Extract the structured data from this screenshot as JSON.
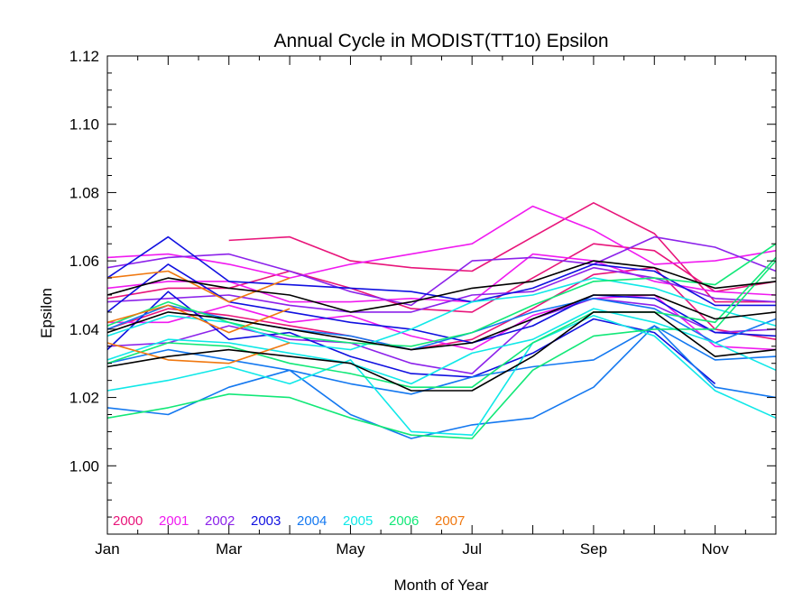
{
  "chart_data": {
    "type": "line",
    "title": "Annual Cycle in MODIST(TT10) Epsilon",
    "xlabel": "Month of Year",
    "ylabel": "Epsilon",
    "xlim": [
      1,
      12
    ],
    "ylim": [
      0.98,
      1.12
    ],
    "x_ticks": [
      {
        "value": 1,
        "label": "Jan"
      },
      {
        "value": 3,
        "label": "Mar"
      },
      {
        "value": 5,
        "label": "May"
      },
      {
        "value": 7,
        "label": "Jul"
      },
      {
        "value": 9,
        "label": "Sep"
      },
      {
        "value": 11,
        "label": "Nov"
      }
    ],
    "y_ticks": [
      {
        "value": 1.0,
        "label": "1.00"
      },
      {
        "value": 1.02,
        "label": "1.02"
      },
      {
        "value": 1.04,
        "label": "1.04"
      },
      {
        "value": 1.06,
        "label": "1.06"
      },
      {
        "value": 1.08,
        "label": "1.08"
      },
      {
        "value": 1.1,
        "label": "1.10"
      },
      {
        "value": 1.12,
        "label": "1.12"
      }
    ],
    "legend_placement": "bottom-left",
    "legend": [
      {
        "label": "2000",
        "color": "#e8157a"
      },
      {
        "label": "2001",
        "color": "#f01af0"
      },
      {
        "label": "2002",
        "color": "#8c22ea"
      },
      {
        "label": "2003",
        "color": "#1010e0"
      },
      {
        "label": "2004",
        "color": "#1478f0"
      },
      {
        "label": "2005",
        "color": "#10e8e8"
      },
      {
        "label": "2006",
        "color": "#12e878"
      },
      {
        "label": "2007",
        "color": "#f07810"
      }
    ],
    "series": [
      {
        "color": "#e8157a",
        "x": [
          3,
          4,
          5,
          6,
          7,
          8,
          9,
          10,
          11,
          12
        ],
        "values": [
          1.066,
          1.067,
          1.06,
          1.058,
          1.057,
          1.067,
          1.077,
          1.068,
          1.048,
          1.048
        ]
      },
      {
        "color": "#e8157a",
        "x": [
          1,
          2,
          3,
          4,
          5,
          6,
          7,
          8,
          9,
          10,
          11,
          12
        ],
        "values": [
          1.049,
          1.052,
          1.052,
          1.057,
          1.052,
          1.046,
          1.045,
          1.055,
          1.065,
          1.063,
          1.051,
          1.054
        ]
      },
      {
        "color": "#e8157a",
        "x": [
          1,
          2,
          3,
          4,
          5,
          6,
          7,
          8,
          9,
          10,
          11,
          12
        ],
        "values": [
          1.04,
          1.046,
          1.044,
          1.041,
          1.038,
          1.034,
          1.037,
          1.046,
          1.056,
          1.058,
          1.04,
          1.037
        ]
      },
      {
        "color": "#f01af0",
        "x": [
          1,
          2,
          3,
          4,
          5,
          6,
          7,
          8,
          9,
          10,
          11,
          12
        ],
        "values": [
          1.061,
          1.062,
          1.059,
          1.055,
          1.059,
          1.062,
          1.065,
          1.076,
          1.069,
          1.059,
          1.06,
          1.063
        ]
      },
      {
        "color": "#f01af0",
        "x": [
          1,
          2,
          3,
          4,
          5,
          6,
          7,
          8,
          9,
          10,
          11,
          12
        ],
        "values": [
          1.052,
          1.054,
          1.054,
          1.048,
          1.048,
          1.049,
          1.048,
          1.062,
          1.06,
          1.054,
          1.051,
          1.05
        ]
      },
      {
        "color": "#f01af0",
        "x": [
          1,
          2,
          3,
          4,
          5,
          6,
          7,
          8,
          9,
          10,
          11,
          12
        ],
        "values": [
          1.042,
          1.042,
          1.047,
          1.042,
          1.044,
          1.038,
          1.034,
          1.044,
          1.049,
          1.05,
          1.035,
          1.034
        ]
      },
      {
        "color": "#8c22ea",
        "x": [
          1,
          2,
          3,
          4,
          5,
          6,
          7,
          8,
          9,
          10,
          11,
          12
        ],
        "values": [
          1.058,
          1.061,
          1.062,
          1.057,
          1.051,
          1.047,
          1.06,
          1.061,
          1.059,
          1.067,
          1.064,
          1.057
        ]
      },
      {
        "color": "#8c22ea",
        "x": [
          1,
          2,
          3,
          4,
          5,
          6,
          7,
          8,
          9,
          10,
          11,
          12
        ],
        "values": [
          1.048,
          1.049,
          1.05,
          1.047,
          1.045,
          1.045,
          1.05,
          1.051,
          1.058,
          1.055,
          1.049,
          1.048
        ]
      },
      {
        "color": "#8c22ea",
        "x": [
          1,
          2,
          3,
          4,
          5,
          6,
          7,
          8,
          9,
          10,
          11,
          12
        ],
        "values": [
          1.035,
          1.036,
          1.041,
          1.037,
          1.036,
          1.03,
          1.027,
          1.043,
          1.049,
          1.047,
          1.039,
          1.04
        ]
      },
      {
        "color": "#1010e0",
        "x": [
          1,
          2,
          3,
          4,
          5,
          6,
          7,
          8,
          9,
          10,
          11,
          12
        ],
        "values": [
          1.055,
          1.067,
          1.054,
          1.053,
          1.052,
          1.051,
          1.048,
          1.052,
          1.059,
          1.057,
          1.047,
          1.047
        ]
      },
      {
        "color": "#1010e0",
        "x": [
          1,
          2,
          3,
          4,
          5,
          6,
          7,
          8,
          9,
          10,
          11,
          12
        ],
        "values": [
          1.045,
          1.059,
          1.048,
          1.045,
          1.042,
          1.04,
          1.036,
          1.041,
          1.05,
          1.049,
          1.039,
          1.038
        ]
      },
      {
        "color": "#1010e0",
        "x": [
          1,
          2,
          3,
          4,
          5,
          6,
          7,
          8,
          9,
          10,
          11
        ],
        "values": [
          1.034,
          1.051,
          1.037,
          1.039,
          1.032,
          1.027,
          1.026,
          1.033,
          1.043,
          1.039,
          1.024
        ]
      },
      {
        "color": "#1478f0",
        "x": [
          1,
          2,
          3,
          4,
          5,
          6,
          7,
          8,
          9,
          10,
          11,
          12
        ],
        "values": [
          1.04,
          1.047,
          1.043,
          1.04,
          1.038,
          1.034,
          1.039,
          1.045,
          1.049,
          1.046,
          1.036,
          1.043
        ]
      },
      {
        "color": "#1478f0",
        "x": [
          1,
          2,
          3,
          4,
          5,
          6,
          7,
          8,
          9,
          10,
          11,
          12
        ],
        "values": [
          1.03,
          1.034,
          1.031,
          1.028,
          1.024,
          1.021,
          1.026,
          1.029,
          1.031,
          1.041,
          1.031,
          1.032
        ]
      },
      {
        "color": "#1478f0",
        "x": [
          1,
          2,
          3,
          4,
          5,
          6,
          7,
          8,
          9,
          10,
          11,
          12
        ],
        "values": [
          1.017,
          1.015,
          1.023,
          1.028,
          1.015,
          1.008,
          1.012,
          1.014,
          1.023,
          1.041,
          1.023,
          1.02
        ]
      },
      {
        "color": "#10e8e8",
        "x": [
          1,
          2,
          3,
          4,
          5,
          6,
          7,
          8,
          9,
          10,
          11,
          12
        ],
        "values": [
          1.038,
          1.044,
          1.042,
          1.036,
          1.034,
          1.04,
          1.048,
          1.05,
          1.055,
          1.052,
          1.046,
          1.041
        ]
      },
      {
        "color": "#10e8e8",
        "x": [
          1,
          2,
          3,
          4,
          5,
          6,
          7,
          8,
          9,
          10,
          11,
          12
        ],
        "values": [
          1.031,
          1.037,
          1.036,
          1.033,
          1.03,
          1.024,
          1.033,
          1.037,
          1.046,
          1.042,
          1.036,
          1.028
        ]
      },
      {
        "color": "#10e8e8",
        "x": [
          1,
          2,
          3,
          4,
          5,
          6,
          7,
          8,
          9,
          10,
          11,
          12
        ],
        "values": [
          1.022,
          1.025,
          1.029,
          1.024,
          1.031,
          1.01,
          1.009,
          1.036,
          1.044,
          1.038,
          1.022,
          1.014
        ]
      },
      {
        "color": "#12e878",
        "x": [
          1,
          2,
          3,
          4,
          5,
          6,
          7,
          8,
          9,
          10,
          11,
          12
        ],
        "values": [
          1.041,
          1.048,
          1.042,
          1.038,
          1.036,
          1.035,
          1.039,
          1.047,
          1.054,
          1.055,
          1.053,
          1.065
        ]
      },
      {
        "color": "#12e878",
        "x": [
          1,
          2,
          3,
          4,
          5,
          6,
          7,
          8,
          9,
          10,
          11,
          12
        ],
        "values": [
          1.03,
          1.036,
          1.035,
          1.03,
          1.027,
          1.023,
          1.023,
          1.036,
          1.045,
          1.045,
          1.042,
          1.061
        ]
      },
      {
        "color": "#12e878",
        "x": [
          1,
          2,
          3,
          4,
          5,
          6,
          7,
          8,
          9,
          10,
          11,
          12
        ],
        "values": [
          1.014,
          1.017,
          1.021,
          1.02,
          1.014,
          1.009,
          1.008,
          1.028,
          1.038,
          1.04,
          1.04,
          1.06
        ]
      },
      {
        "color": "#f07810",
        "x": [
          1,
          2,
          3,
          4
        ],
        "values": [
          1.055,
          1.057,
          1.048,
          1.055
        ]
      },
      {
        "color": "#f07810",
        "x": [
          1,
          2,
          3,
          4
        ],
        "values": [
          1.042,
          1.047,
          1.039,
          1.046
        ]
      },
      {
        "color": "#f07810",
        "x": [
          1,
          2,
          3,
          4
        ],
        "values": [
          1.036,
          1.031,
          1.03,
          1.036
        ]
      },
      {
        "color": "#000000",
        "x": [
          1,
          2,
          3,
          4,
          5,
          6,
          7,
          8,
          9,
          10,
          11,
          12
        ],
        "values": [
          1.05,
          1.055,
          1.052,
          1.05,
          1.045,
          1.048,
          1.052,
          1.054,
          1.06,
          1.058,
          1.052,
          1.054
        ]
      },
      {
        "color": "#000000",
        "x": [
          1,
          2,
          3,
          4,
          5,
          6,
          7,
          8,
          9,
          10,
          11,
          12
        ],
        "values": [
          1.039,
          1.045,
          1.043,
          1.04,
          1.037,
          1.034,
          1.036,
          1.043,
          1.05,
          1.05,
          1.043,
          1.045
        ]
      },
      {
        "color": "#000000",
        "x": [
          1,
          2,
          3,
          4,
          5,
          6,
          7,
          8,
          9,
          10,
          11,
          12
        ],
        "values": [
          1.029,
          1.032,
          1.034,
          1.032,
          1.03,
          1.022,
          1.022,
          1.032,
          1.045,
          1.045,
          1.032,
          1.034
        ]
      }
    ]
  }
}
